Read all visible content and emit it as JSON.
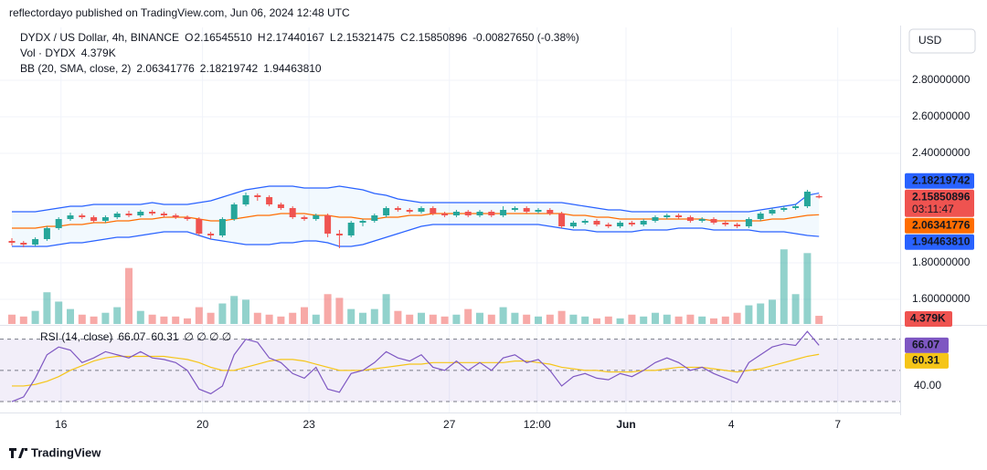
{
  "header": {
    "publisher": "reflectordayo published on TradingView.com, Jun 06, 2024 12:48 UTC",
    "currency": "USD",
    "countdown": "03:11:47",
    "brand": "TradingView"
  },
  "legend": {
    "symbol": "DYDX / US Dollar, 4h, BINANCE",
    "ohlc": [
      {
        "key": "O",
        "value": "2.16545510"
      },
      {
        "key": "H",
        "value": "2.17440167"
      },
      {
        "key": "L",
        "value": "2.15321475"
      },
      {
        "key": "C",
        "value": "2.15850896"
      }
    ],
    "change": "-0.00827650 (-0.38%)",
    "volume": {
      "name": "Vol · DYDX",
      "value": "4.379K"
    },
    "bb": {
      "name": "BB (20, SMA, close, 2)",
      "values": [
        "2.06341776",
        "2.18219742",
        "1.94463810"
      ]
    },
    "rsi": {
      "name": "RSI (14, close)",
      "values": [
        "66.07",
        "60.31"
      ],
      "markers": "∅ ∅ ∅ ∅"
    }
  },
  "chart_data": {
    "type": "candlestick",
    "up_color": "#26a69a",
    "down_color": "#ef5350",
    "ylim": [
      1.465,
      3.09
    ],
    "yticks": [
      {
        "value": 1.6,
        "label": "1.60000000"
      },
      {
        "value": 1.8,
        "label": "1.80000000"
      },
      {
        "value": 2.4,
        "label": "2.40000000"
      },
      {
        "value": 2.6,
        "label": "2.60000000"
      },
      {
        "value": 2.8,
        "label": "2.80000000"
      }
    ],
    "xticks": [
      {
        "value": 4.2,
        "label": "16"
      },
      {
        "value": 16.3,
        "label": "20"
      },
      {
        "value": 25.4,
        "label": "23"
      },
      {
        "value": 37.4,
        "label": "27"
      },
      {
        "value": 44.9,
        "label": "12:00"
      },
      {
        "value": 52.5,
        "label": "Jun"
      },
      {
        "value": 61.5,
        "label": "4"
      },
      {
        "value": 70.6,
        "label": "7"
      }
    ],
    "candles": [
      [
        1.92,
        1.935,
        1.895,
        1.91
      ],
      [
        1.91,
        1.92,
        1.885,
        1.9
      ],
      [
        1.9,
        1.94,
        1.89,
        1.93
      ],
      [
        1.93,
        2.0,
        1.92,
        1.99
      ],
      [
        1.99,
        2.05,
        1.98,
        2.04
      ],
      [
        2.04,
        2.075,
        2.03,
        2.06
      ],
      [
        2.06,
        2.07,
        2.04,
        2.05
      ],
      [
        2.05,
        2.06,
        2.02,
        2.03
      ],
      [
        2.03,
        2.06,
        2.02,
        2.05
      ],
      [
        2.05,
        2.08,
        2.04,
        2.07
      ],
      [
        2.07,
        2.085,
        2.05,
        2.06
      ],
      [
        2.06,
        2.09,
        2.05,
        2.08
      ],
      [
        2.08,
        2.09,
        2.06,
        2.07
      ],
      [
        2.07,
        2.08,
        2.05,
        2.06
      ],
      [
        2.06,
        2.07,
        2.04,
        2.05
      ],
      [
        2.05,
        2.06,
        2.03,
        2.04
      ],
      [
        2.04,
        2.05,
        1.95,
        1.96
      ],
      [
        1.96,
        1.97,
        1.93,
        1.95
      ],
      [
        1.95,
        2.05,
        1.94,
        2.04
      ],
      [
        2.04,
        2.13,
        2.03,
        2.12
      ],
      [
        2.12,
        2.185,
        2.11,
        2.17
      ],
      [
        2.17,
        2.18,
        2.14,
        2.16
      ],
      [
        2.16,
        2.17,
        2.11,
        2.12
      ],
      [
        2.12,
        2.13,
        2.09,
        2.1
      ],
      [
        2.1,
        2.11,
        2.04,
        2.05
      ],
      [
        2.05,
        2.06,
        2.03,
        2.04
      ],
      [
        2.04,
        2.07,
        2.03,
        2.06
      ],
      [
        2.06,
        2.07,
        1.94,
        1.96
      ],
      [
        1.96,
        1.98,
        1.88,
        1.95
      ],
      [
        1.95,
        2.03,
        1.94,
        2.02
      ],
      [
        2.02,
        2.04,
        2.0,
        2.03
      ],
      [
        2.03,
        2.07,
        2.02,
        2.06
      ],
      [
        2.06,
        2.11,
        2.05,
        2.1
      ],
      [
        2.1,
        2.11,
        2.08,
        2.09
      ],
      [
        2.09,
        2.1,
        2.07,
        2.08
      ],
      [
        2.08,
        2.11,
        2.07,
        2.1
      ],
      [
        2.1,
        2.11,
        2.06,
        2.07
      ],
      [
        2.07,
        2.08,
        2.05,
        2.06
      ],
      [
        2.06,
        2.09,
        2.05,
        2.08
      ],
      [
        2.08,
        2.09,
        2.05,
        2.06
      ],
      [
        2.06,
        2.09,
        2.05,
        2.08
      ],
      [
        2.08,
        2.09,
        2.05,
        2.06
      ],
      [
        2.06,
        2.11,
        2.05,
        2.09
      ],
      [
        2.09,
        2.11,
        2.08,
        2.1
      ],
      [
        2.1,
        2.11,
        2.07,
        2.08
      ],
      [
        2.08,
        2.1,
        2.07,
        2.09
      ],
      [
        2.09,
        2.1,
        2.06,
        2.07
      ],
      [
        2.07,
        2.08,
        1.99,
        2.0
      ],
      [
        2.0,
        2.03,
        1.99,
        2.02
      ],
      [
        2.02,
        2.04,
        2.01,
        2.03
      ],
      [
        2.03,
        2.04,
        2.0,
        2.01
      ],
      [
        2.01,
        2.02,
        1.99,
        2.0
      ],
      [
        2.0,
        2.03,
        1.99,
        2.02
      ],
      [
        2.02,
        2.03,
        2.0,
        2.01
      ],
      [
        2.01,
        2.04,
        2.0,
        2.03
      ],
      [
        2.03,
        2.06,
        2.02,
        2.05
      ],
      [
        2.05,
        2.07,
        2.04,
        2.06
      ],
      [
        2.06,
        2.07,
        2.04,
        2.05
      ],
      [
        2.05,
        2.06,
        2.02,
        2.03
      ],
      [
        2.03,
        2.05,
        2.02,
        2.04
      ],
      [
        2.04,
        2.05,
        2.01,
        2.02
      ],
      [
        2.02,
        2.03,
        2.0,
        2.01
      ],
      [
        2.01,
        2.02,
        1.99,
        2.0
      ],
      [
        2.0,
        2.05,
        1.99,
        2.04
      ],
      [
        2.04,
        2.08,
        2.03,
        2.07
      ],
      [
        2.07,
        2.1,
        2.06,
        2.09
      ],
      [
        2.09,
        2.11,
        2.08,
        2.1
      ],
      [
        2.1,
        2.12,
        2.09,
        2.11
      ],
      [
        2.11,
        2.2,
        2.1,
        2.19
      ],
      [
        2.1654551,
        2.17440167,
        2.15321475,
        2.15850896
      ]
    ],
    "bb": {
      "upper_color": "#2962ff",
      "middle_color": "#ff6d00",
      "lower_color": "#2962ff",
      "upper": [
        2.08,
        2.08,
        2.08,
        2.09,
        2.1,
        2.11,
        2.11,
        2.12,
        2.12,
        2.12,
        2.12,
        2.12,
        2.13,
        2.12,
        2.12,
        2.12,
        2.13,
        2.14,
        2.16,
        2.18,
        2.2,
        2.21,
        2.22,
        2.22,
        2.22,
        2.21,
        2.21,
        2.21,
        2.22,
        2.21,
        2.2,
        2.18,
        2.17,
        2.15,
        2.14,
        2.13,
        2.13,
        2.13,
        2.13,
        2.13,
        2.13,
        2.13,
        2.13,
        2.13,
        2.13,
        2.13,
        2.13,
        2.13,
        2.12,
        2.11,
        2.1,
        2.09,
        2.09,
        2.08,
        2.08,
        2.08,
        2.08,
        2.08,
        2.08,
        2.08,
        2.08,
        2.08,
        2.08,
        2.08,
        2.09,
        2.1,
        2.11,
        2.12,
        2.17,
        2.18219742
      ],
      "middle": [
        1.99,
        1.99,
        1.99,
        2.0,
        2.0,
        2.01,
        2.01,
        2.02,
        2.02,
        2.03,
        2.03,
        2.04,
        2.04,
        2.05,
        2.05,
        2.05,
        2.04,
        2.03,
        2.03,
        2.04,
        2.05,
        2.06,
        2.06,
        2.07,
        2.07,
        2.07,
        2.06,
        2.06,
        2.05,
        2.05,
        2.04,
        2.04,
        2.05,
        2.05,
        2.06,
        2.06,
        2.07,
        2.07,
        2.07,
        2.07,
        2.07,
        2.07,
        2.07,
        2.07,
        2.07,
        2.07,
        2.07,
        2.07,
        2.06,
        2.06,
        2.05,
        2.05,
        2.04,
        2.04,
        2.04,
        2.04,
        2.04,
        2.04,
        2.04,
        2.04,
        2.03,
        2.03,
        2.03,
        2.03,
        2.03,
        2.04,
        2.04,
        2.05,
        2.06,
        2.06341776
      ],
      "lower": [
        1.89,
        1.89,
        1.89,
        1.89,
        1.9,
        1.91,
        1.91,
        1.92,
        1.93,
        1.94,
        1.94,
        1.95,
        1.96,
        1.97,
        1.97,
        1.97,
        1.95,
        1.93,
        1.92,
        1.91,
        1.9,
        1.9,
        1.9,
        1.91,
        1.91,
        1.92,
        1.92,
        1.91,
        1.89,
        1.89,
        1.9,
        1.92,
        1.94,
        1.96,
        1.98,
        2.0,
        2.01,
        2.01,
        2.01,
        2.01,
        2.01,
        2.01,
        2.01,
        2.01,
        2.01,
        2.01,
        2.0,
        1.99,
        1.98,
        1.98,
        1.97,
        1.97,
        1.97,
        1.97,
        1.98,
        1.98,
        1.98,
        1.99,
        1.99,
        1.99,
        1.98,
        1.98,
        1.98,
        1.98,
        1.97,
        1.97,
        1.97,
        1.96,
        1.95,
        1.9446381
      ]
    },
    "vlim": [
      0,
      45000
    ],
    "volume": [
      5000,
      4000,
      7000,
      17000,
      12000,
      8000,
      5000,
      4000,
      6000,
      9000,
      30000,
      7000,
      5000,
      4000,
      4000,
      3000,
      9000,
      6000,
      11000,
      15000,
      13000,
      6000,
      5000,
      4000,
      6000,
      9000,
      5000,
      16000,
      14000,
      8000,
      6000,
      8000,
      16000,
      7000,
      5000,
      6000,
      5000,
      4000,
      5000,
      8000,
      6000,
      5000,
      9000,
      6000,
      5000,
      4000,
      5000,
      7000,
      5000,
      4000,
      3000,
      4000,
      3000,
      5000,
      4000,
      6000,
      5000,
      4000,
      5000,
      4000,
      3000,
      4000,
      6000,
      10000,
      11000,
      13000,
      40000,
      16000,
      38000,
      4379
    ],
    "rsi_color": "#7e57c2",
    "rsi_ma_color": "#f5c518",
    "rsi_ylim": [
      23,
      78
    ],
    "rsi_yticks": [
      {
        "value": 40,
        "label": "40.00"
      }
    ],
    "rsi_levels": [
      70,
      50,
      30
    ],
    "rsi": [
      30,
      33,
      45,
      60,
      65,
      63,
      55,
      58,
      62,
      60,
      58,
      62,
      58,
      57,
      55,
      50,
      38,
      35,
      40,
      60,
      70,
      68,
      58,
      55,
      48,
      45,
      52,
      38,
      36,
      48,
      50,
      55,
      62,
      58,
      56,
      60,
      52,
      50,
      56,
      50,
      55,
      50,
      58,
      60,
      55,
      57,
      50,
      40,
      46,
      48,
      45,
      44,
      48,
      46,
      50,
      55,
      58,
      55,
      50,
      52,
      48,
      45,
      42,
      55,
      60,
      65,
      67,
      66,
      75,
      66.07
    ],
    "rsi_ma": [
      40,
      40,
      41,
      43,
      46,
      50,
      53,
      56,
      58,
      59,
      59,
      59,
      59,
      59,
      58,
      57,
      55,
      52,
      50,
      50,
      52,
      54,
      56,
      57,
      57,
      56,
      54,
      52,
      50,
      50,
      50,
      51,
      52,
      53,
      54,
      54,
      55,
      55,
      55,
      55,
      55,
      55,
      55,
      56,
      56,
      55,
      54,
      52,
      51,
      50,
      50,
      49,
      49,
      49,
      50,
      50,
      51,
      52,
      52,
      52,
      51,
      50,
      49,
      50,
      51,
      53,
      55,
      57,
      59,
      60.31
    ]
  }
}
